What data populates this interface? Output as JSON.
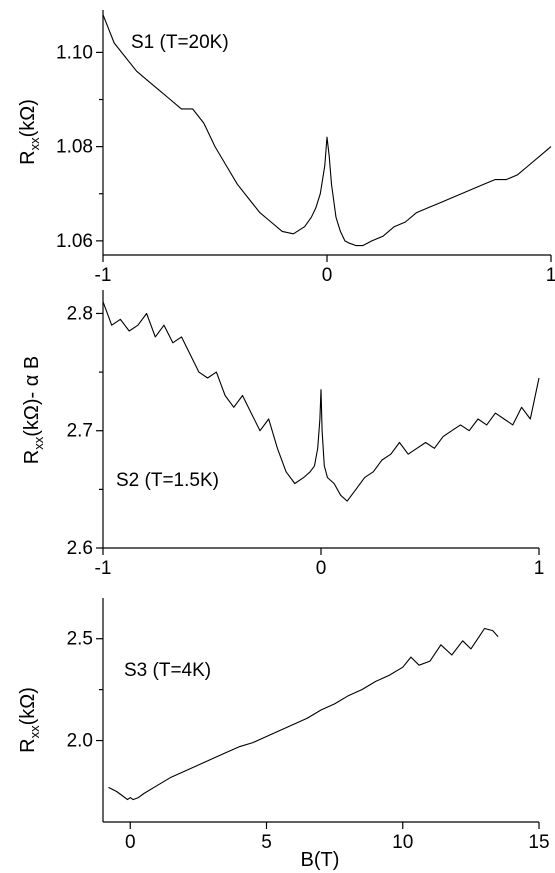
{
  "chart_data": [
    {
      "type": "line",
      "panel": "top",
      "annotation": "S1 (T=20K)",
      "ylabel": {
        "main": "R",
        "sub": "xx",
        "rest": "(kΩ)"
      },
      "xlabel": "",
      "xlim": [
        -1,
        1
      ],
      "ylim": [
        1.057,
        1.109
      ],
      "xticks": [
        -1,
        0,
        1
      ],
      "xtick_labels": [
        "-1",
        "0",
        "1"
      ],
      "yticks": [
        1.06,
        1.08,
        1.1
      ],
      "ytick_labels": [
        "1.06",
        "1.08",
        "1.10"
      ],
      "series": [
        {
          "x": [
            -1.0,
            -0.95,
            -0.9,
            -0.85,
            -0.8,
            -0.75,
            -0.7,
            -0.65,
            -0.6,
            -0.55,
            -0.5,
            -0.45,
            -0.4,
            -0.35,
            -0.3,
            -0.25,
            -0.2,
            -0.15,
            -0.1,
            -0.07,
            -0.05,
            -0.03,
            -0.01,
            0.0,
            0.01,
            0.02,
            0.04,
            0.06,
            0.08,
            0.1,
            0.13,
            0.16,
            0.2,
            0.25,
            0.3,
            0.35,
            0.4,
            0.45,
            0.5,
            0.55,
            0.6,
            0.65,
            0.7,
            0.75,
            0.8,
            0.85,
            0.9,
            0.95,
            1.0
          ],
          "y": [
            1.108,
            1.102,
            1.099,
            1.096,
            1.094,
            1.092,
            1.09,
            1.088,
            1.088,
            1.085,
            1.08,
            1.076,
            1.072,
            1.069,
            1.066,
            1.064,
            1.062,
            1.0615,
            1.063,
            1.065,
            1.067,
            1.07,
            1.076,
            1.082,
            1.078,
            1.072,
            1.065,
            1.062,
            1.06,
            1.0595,
            1.059,
            1.059,
            1.06,
            1.061,
            1.063,
            1.064,
            1.066,
            1.067,
            1.068,
            1.069,
            1.07,
            1.071,
            1.072,
            1.073,
            1.073,
            1.074,
            1.076,
            1.078,
            1.08
          ]
        }
      ]
    },
    {
      "type": "line",
      "panel": "middle",
      "annotation": "S2 (T=1.5K)",
      "ylabel": {
        "main": "R",
        "sub": "xx",
        "rest": "(kΩ)- α B"
      },
      "xlabel": "",
      "xlim": [
        -1,
        1
      ],
      "ylim": [
        2.6,
        2.82
      ],
      "xticks": [
        -1,
        0,
        1
      ],
      "xtick_labels": [
        "-1",
        "0",
        "1"
      ],
      "yticks": [
        2.6,
        2.7,
        2.8
      ],
      "ytick_labels": [
        "2.6",
        "2.7",
        "2.8"
      ],
      "series": [
        {
          "x": [
            -1.0,
            -0.96,
            -0.92,
            -0.88,
            -0.84,
            -0.8,
            -0.76,
            -0.72,
            -0.68,
            -0.64,
            -0.6,
            -0.56,
            -0.52,
            -0.48,
            -0.44,
            -0.4,
            -0.36,
            -0.32,
            -0.28,
            -0.24,
            -0.2,
            -0.16,
            -0.12,
            -0.08,
            -0.05,
            -0.03,
            -0.015,
            -0.005,
            0.0,
            0.005,
            0.015,
            0.03,
            0.06,
            0.09,
            0.12,
            0.16,
            0.2,
            0.24,
            0.28,
            0.32,
            0.36,
            0.4,
            0.44,
            0.48,
            0.52,
            0.56,
            0.6,
            0.64,
            0.68,
            0.72,
            0.76,
            0.8,
            0.84,
            0.88,
            0.92,
            0.96,
            1.0
          ],
          "y": [
            2.81,
            2.79,
            2.795,
            2.785,
            2.79,
            2.8,
            2.78,
            2.79,
            2.775,
            2.78,
            2.765,
            2.75,
            2.745,
            2.75,
            2.73,
            2.72,
            2.73,
            2.715,
            2.7,
            2.71,
            2.685,
            2.665,
            2.655,
            2.66,
            2.665,
            2.67,
            2.685,
            2.71,
            2.735,
            2.7,
            2.67,
            2.66,
            2.655,
            2.645,
            2.64,
            2.65,
            2.66,
            2.665,
            2.675,
            2.68,
            2.69,
            2.68,
            2.685,
            2.69,
            2.685,
            2.695,
            2.7,
            2.705,
            2.7,
            2.71,
            2.705,
            2.715,
            2.71,
            2.705,
            2.72,
            2.71,
            2.745
          ]
        }
      ]
    },
    {
      "type": "line",
      "panel": "bottom",
      "annotation": "S3 (T=4K)",
      "ylabel": {
        "main": "R",
        "sub": "xx",
        "rest": "(kΩ)"
      },
      "xlabel": "B(T)",
      "xlim": [
        -1,
        15
      ],
      "ylim": [
        1.6,
        2.7
      ],
      "xticks": [
        0,
        5,
        10,
        15
      ],
      "xtick_labels": [
        "0",
        "5",
        "10",
        "15"
      ],
      "yticks": [
        2.0,
        2.5
      ],
      "ytick_labels": [
        "2.0",
        "2.5"
      ],
      "series": [
        {
          "x": [
            -0.8,
            -0.5,
            -0.3,
            -0.1,
            0.0,
            0.1,
            0.3,
            0.5,
            1.0,
            1.5,
            2.0,
            2.5,
            3.0,
            3.5,
            4.0,
            4.5,
            5.0,
            5.5,
            6.0,
            6.5,
            7.0,
            7.5,
            8.0,
            8.5,
            9.0,
            9.5,
            10.0,
            10.3,
            10.6,
            11.0,
            11.4,
            11.8,
            12.2,
            12.5,
            12.8,
            13.0,
            13.3,
            13.5
          ],
          "y": [
            1.77,
            1.75,
            1.73,
            1.71,
            1.72,
            1.71,
            1.72,
            1.74,
            1.78,
            1.82,
            1.85,
            1.88,
            1.91,
            1.94,
            1.97,
            1.99,
            2.02,
            2.05,
            2.08,
            2.11,
            2.15,
            2.18,
            2.22,
            2.25,
            2.29,
            2.32,
            2.36,
            2.41,
            2.37,
            2.39,
            2.47,
            2.42,
            2.49,
            2.45,
            2.51,
            2.55,
            2.54,
            2.51
          ]
        }
      ]
    }
  ]
}
